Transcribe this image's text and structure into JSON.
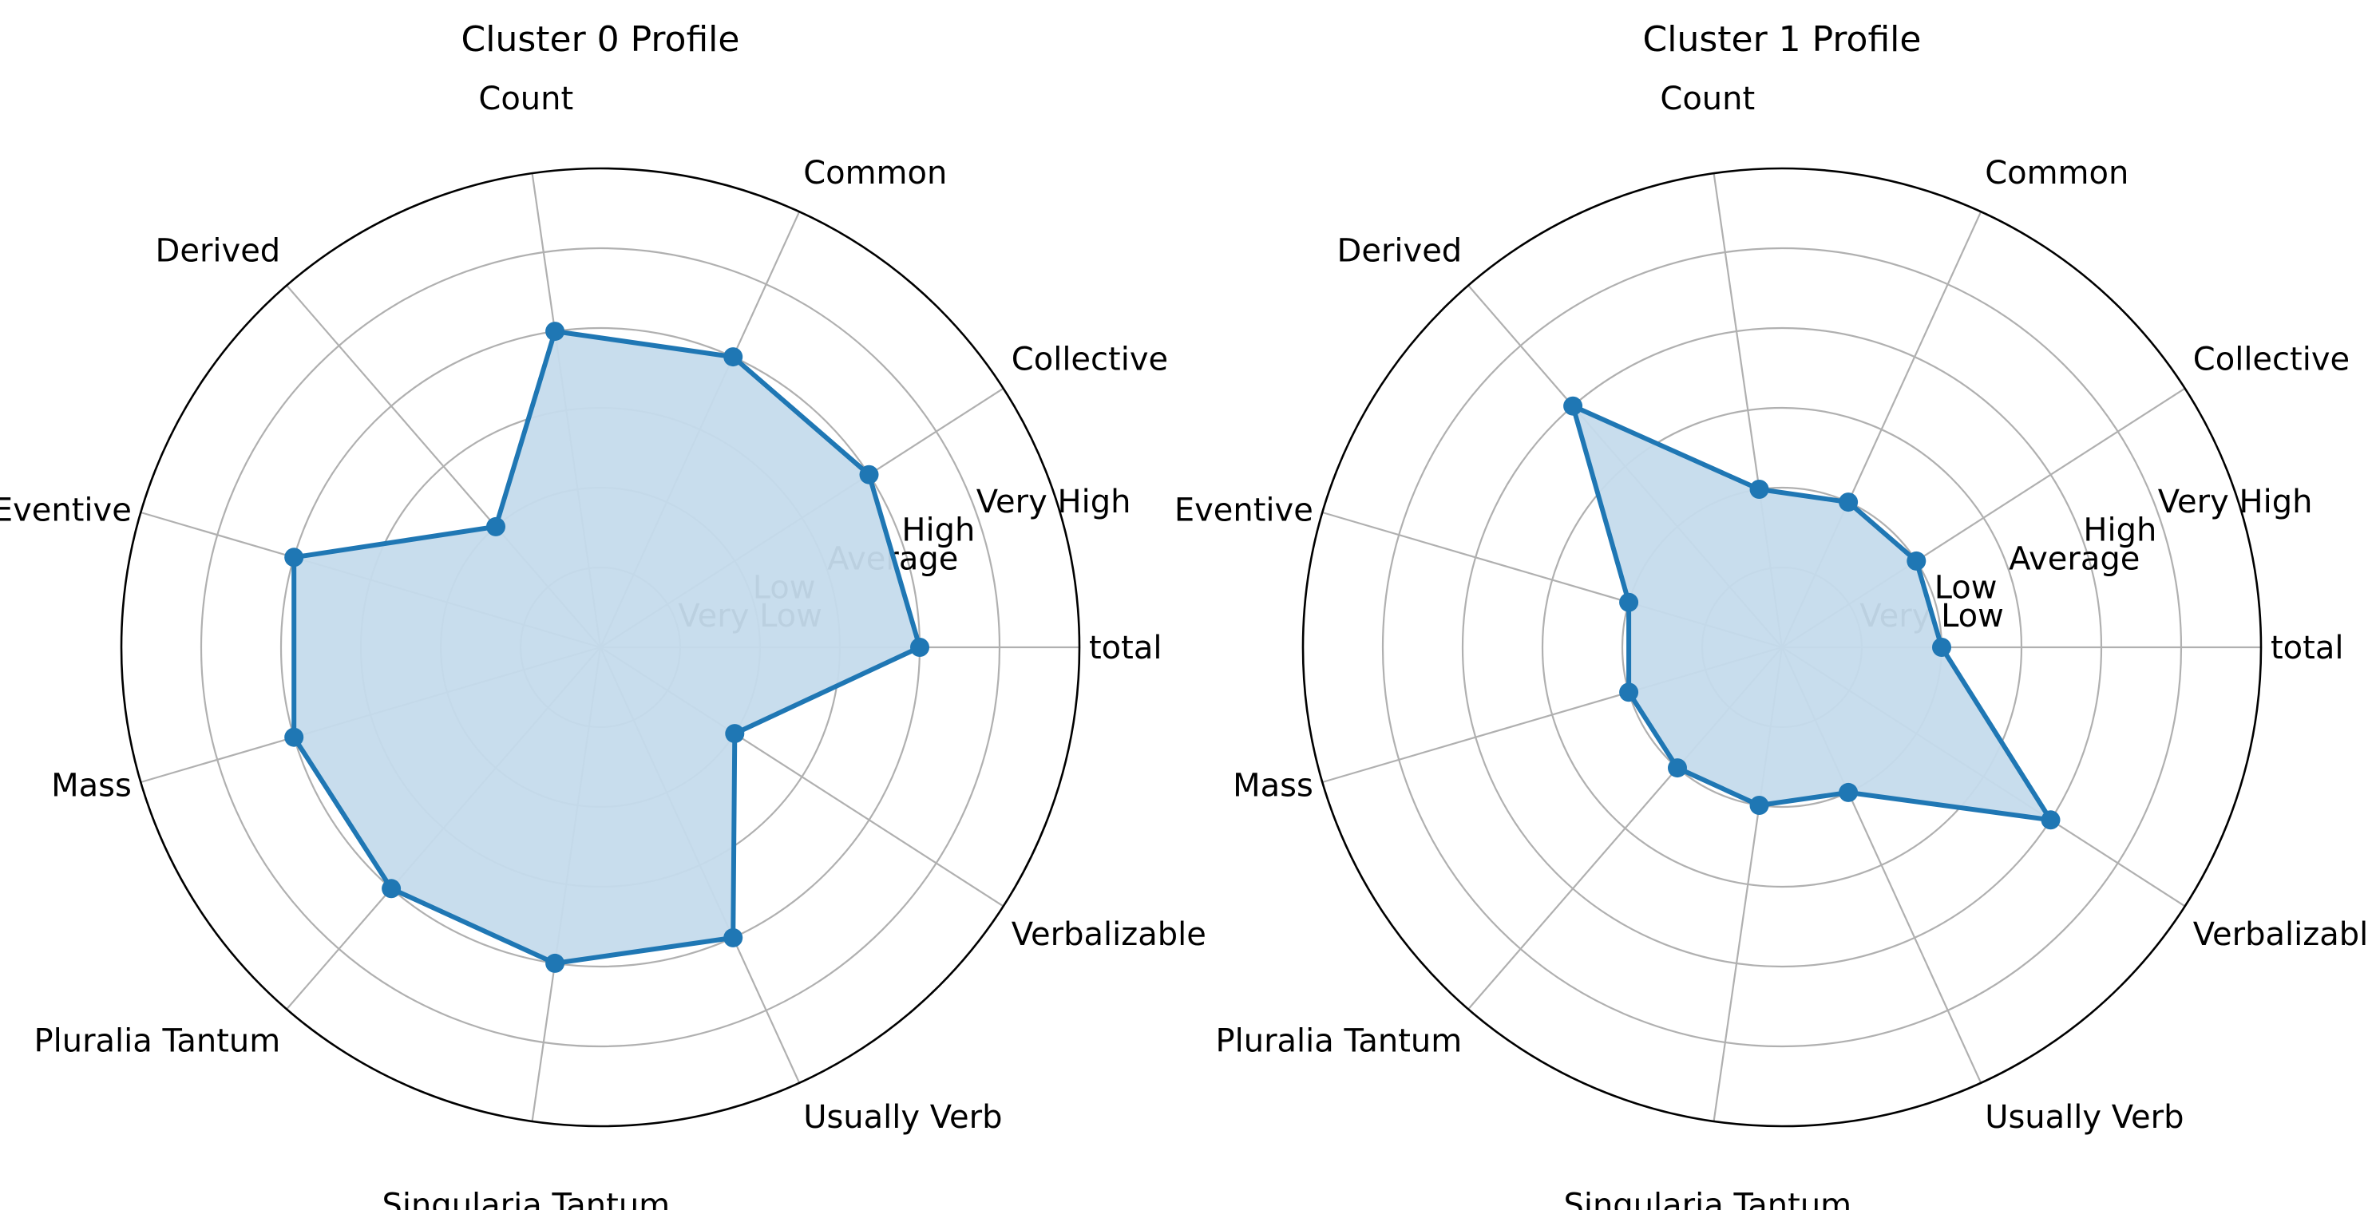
{
  "chart_data": [
    {
      "type": "radar",
      "title": "Cluster 0 Profile",
      "axes": [
        "total",
        "Collective",
        "Common",
        "Count",
        "Derived",
        "Eventive",
        "Mass",
        "Pluralia Tantum",
        "Singularia Tantum",
        "Usually Verb",
        "Verbalizable"
      ],
      "level_labels": [
        "Very Low",
        "Low",
        "Average",
        "High",
        "Very High"
      ],
      "rmax": 6,
      "series": [
        {
          "values": [
            4,
            4,
            4,
            4,
            2,
            4,
            4,
            4,
            4,
            4,
            2
          ]
        }
      ]
    },
    {
      "type": "radar",
      "title": "Cluster 1 Profile",
      "axes": [
        "total",
        "Collective",
        "Common",
        "Count",
        "Derived",
        "Eventive",
        "Mass",
        "Pluralia Tantum",
        "Singularia Tantum",
        "Usually Verb",
        "Verbalizable"
      ],
      "level_labels": [
        "Very Low",
        "Low",
        "Average",
        "High",
        "Very High"
      ],
      "rmax": 6,
      "series": [
        {
          "values": [
            2,
            2,
            2,
            2,
            4,
            2,
            2,
            2,
            2,
            2,
            4
          ]
        }
      ]
    }
  ],
  "colors": {
    "line": "#1f77b4",
    "fill": "#c5dbec",
    "grid": "#b0b0b0",
    "frame": "#000000"
  }
}
